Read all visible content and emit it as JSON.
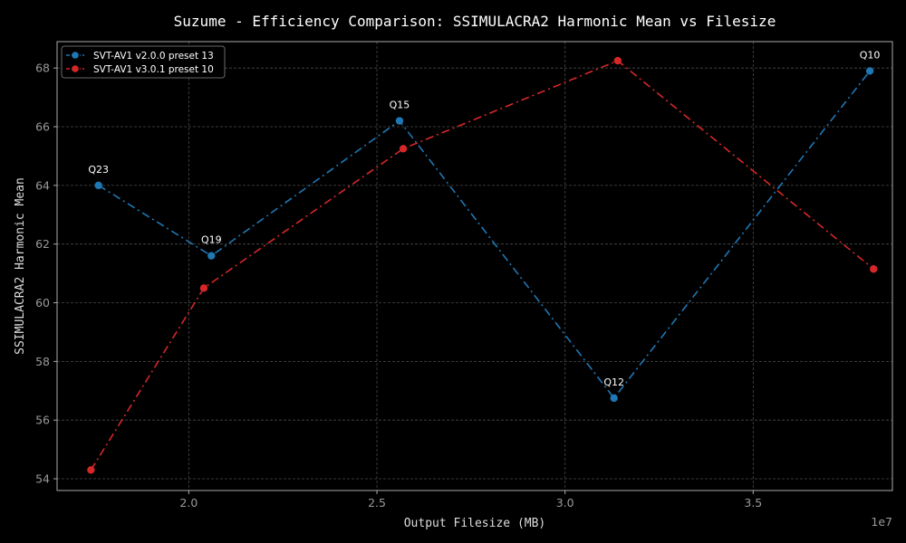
{
  "chart_data": {
    "type": "line",
    "title": "Suzume - Efficiency Comparison: SSIMULACRA2 Harmonic Mean vs Filesize",
    "xlabel": "Output Filesize (MB)",
    "ylabel": "SSIMULACRA2 Harmonic Mean",
    "x_offset_label": "1e7",
    "xlim": [
      16500000,
      38700000
    ],
    "ylim": [
      53.6,
      68.9
    ],
    "xticks": [
      20000000,
      25000000,
      30000000,
      35000000
    ],
    "xtick_labels": [
      "2.0",
      "2.5",
      "3.0",
      "3.5"
    ],
    "yticks": [
      54,
      56,
      58,
      60,
      62,
      64,
      66,
      68
    ],
    "ytick_labels": [
      "54",
      "56",
      "58",
      "60",
      "62",
      "64",
      "66",
      "68"
    ],
    "grid": true,
    "legend_position": "top-left",
    "series": [
      {
        "name": "SVT-AV1 v2.0.0 preset 13",
        "color": "#1f77b4",
        "points": [
          {
            "x": 17600000,
            "y": 64.0,
            "label": "Q23"
          },
          {
            "x": 20600000,
            "y": 61.6,
            "label": "Q19"
          },
          {
            "x": 25600000,
            "y": 66.2,
            "label": "Q15"
          },
          {
            "x": 31300000,
            "y": 56.75,
            "label": "Q12"
          },
          {
            "x": 38100000,
            "y": 67.9,
            "label": "Q10"
          }
        ]
      },
      {
        "name": "SVT-AV1 v3.0.1 preset 10",
        "color": "#d62728",
        "points": [
          {
            "x": 17400000,
            "y": 54.3
          },
          {
            "x": 20400000,
            "y": 60.5
          },
          {
            "x": 25700000,
            "y": 65.25
          },
          {
            "x": 31400000,
            "y": 68.25
          },
          {
            "x": 38200000,
            "y": 61.15
          }
        ]
      }
    ]
  }
}
